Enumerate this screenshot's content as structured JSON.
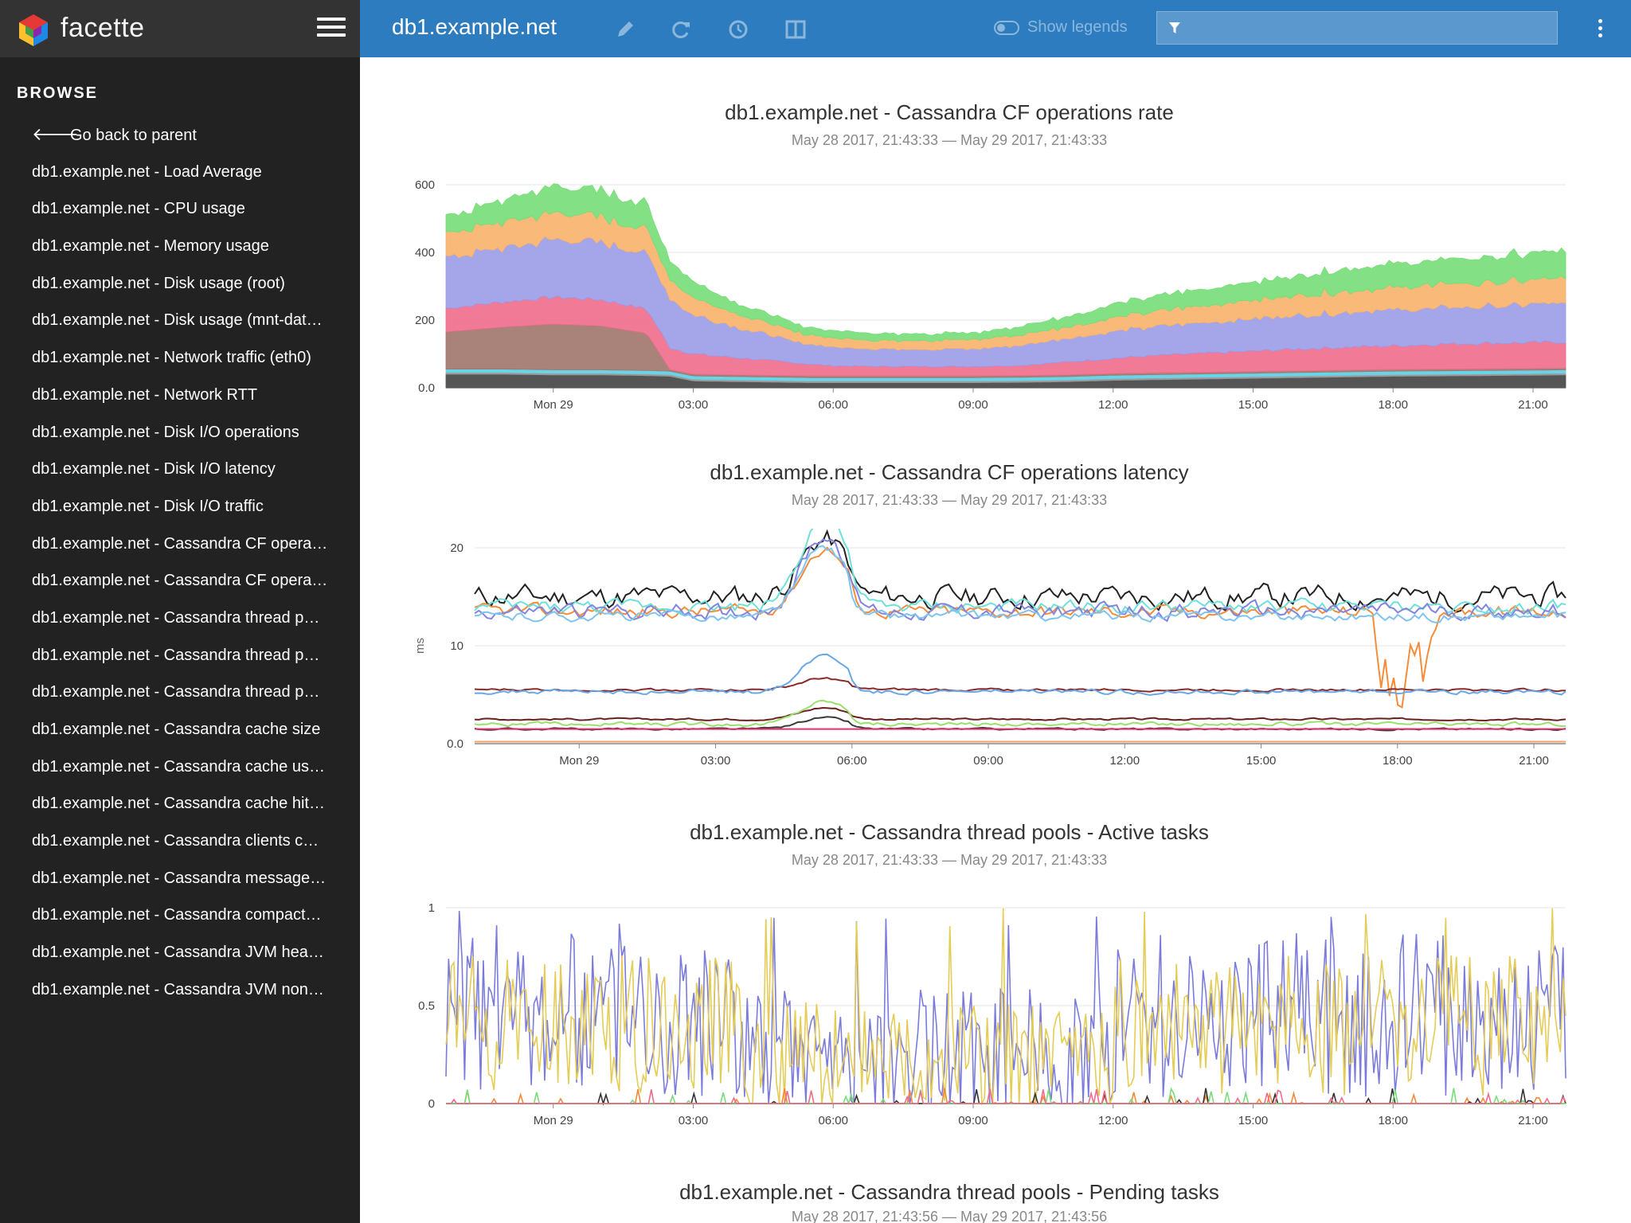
{
  "app": {
    "name": "facette",
    "menu_icon": "hamburger-icon"
  },
  "sidebar": {
    "section_title": "BROWSE",
    "back_label": "Go back to parent",
    "items": [
      "db1.example.net - Load Average",
      "db1.example.net - CPU usage",
      "db1.example.net - Memory usage",
      "db1.example.net - Disk usage (root)",
      "db1.example.net - Disk usage (mnt-dat…",
      "db1.example.net - Network traffic (eth0)",
      "db1.example.net - Network RTT",
      "db1.example.net - Disk I/O operations",
      "db1.example.net - Disk I/O latency",
      "db1.example.net - Disk I/O traffic",
      "db1.example.net - Cassandra CF opera…",
      "db1.example.net - Cassandra CF opera…",
      "db1.example.net - Cassandra thread p…",
      "db1.example.net - Cassandra thread p…",
      "db1.example.net - Cassandra thread p…",
      "db1.example.net - Cassandra cache size",
      "db1.example.net - Cassandra cache us…",
      "db1.example.net - Cassandra cache hit…",
      "db1.example.net - Cassandra clients c…",
      "db1.example.net - Cassandra message…",
      "db1.example.net - Cassandra compact…",
      "db1.example.net - Cassandra JVM hea…",
      "db1.example.net - Cassandra JVM non…"
    ]
  },
  "topbar": {
    "title": "db1.example.net",
    "icons": [
      "pencil-icon",
      "refresh-icon",
      "clock-icon",
      "columns-icon"
    ],
    "legend_label": "Show legends",
    "filter_placeholder": "",
    "filter_value": ""
  },
  "colors": {
    "sidebar_bg": "#222222",
    "topbar_bg": "#2d7cbf",
    "green": "#77dd77",
    "orange": "#f8b26a",
    "blue": "#9b9be8",
    "red": "#f06b8c",
    "brown": "#a0746b",
    "yellow": "#e5cc55",
    "purple": "#7b7bdc"
  },
  "chart_data": [
    {
      "type": "area",
      "title": "db1.example.net - Cassandra CF operations rate",
      "subtitle": "May 28 2017, 21:43:33 — May 29 2017, 21:43:33",
      "xlabel": "",
      "ylabel": "",
      "x_ticks": [
        "Mon 29",
        "03:00",
        "06:00",
        "09:00",
        "12:00",
        "15:00",
        "18:00",
        "21:00"
      ],
      "y_ticks": [
        "600",
        "400",
        "200",
        "0.0"
      ],
      "ylim": [
        0,
        600
      ],
      "stacked": true,
      "grid": true,
      "x_hours": [
        -2.3,
        -1,
        0,
        1,
        2,
        2.5,
        3,
        4,
        5,
        5.5,
        6,
        7,
        8,
        9,
        10,
        11,
        12,
        13,
        14,
        15,
        16,
        17,
        18,
        19,
        20,
        21,
        21.7
      ],
      "series": [
        {
          "values": [
            40,
            40,
            38,
            38,
            36,
            34,
            20,
            18,
            16,
            15,
            15,
            15,
            15,
            15,
            16,
            18,
            22,
            24,
            26,
            28,
            30,
            32,
            34,
            35,
            36,
            37,
            38
          ]
        },
        {
          "values": [
            5,
            5,
            5,
            5,
            5,
            5,
            5,
            5,
            5,
            5,
            5,
            5,
            5,
            5,
            5,
            5,
            5,
            5,
            5,
            5,
            5,
            5,
            5,
            5,
            5,
            5,
            5
          ]
        },
        {
          "values": [
            10,
            10,
            10,
            10,
            10,
            10,
            10,
            10,
            10,
            10,
            10,
            10,
            10,
            10,
            10,
            10,
            10,
            10,
            10,
            10,
            10,
            10,
            10,
            10,
            10,
            10,
            10
          ]
        },
        {
          "values": [
            110,
            125,
            135,
            130,
            110,
            5,
            5,
            5,
            5,
            5,
            5,
            5,
            5,
            5,
            5,
            5,
            5,
            5,
            5,
            5,
            5,
            5,
            5,
            5,
            5,
            5,
            5
          ]
        },
        {
          "values": [
            70,
            75,
            80,
            78,
            72,
            65,
            60,
            50,
            40,
            35,
            30,
            28,
            28,
            28,
            30,
            38,
            45,
            52,
            56,
            60,
            65,
            68,
            70,
            74,
            76,
            76,
            78
          ]
        },
        {
          "values": [
            150,
            160,
            170,
            170,
            165,
            150,
            115,
            90,
            65,
            60,
            55,
            52,
            52,
            52,
            60,
            70,
            80,
            85,
            90,
            95,
            100,
            104,
            106,
            108,
            110,
            112,
            115
          ]
        },
        {
          "values": [
            70,
            80,
            80,
            75,
            70,
            55,
            50,
            40,
            30,
            28,
            27,
            26,
            26,
            28,
            30,
            34,
            40,
            45,
            50,
            55,
            60,
            62,
            66,
            68,
            70,
            72,
            74
          ]
        },
        {
          "values": [
            50,
            65,
            80,
            75,
            75,
            55,
            50,
            30,
            25,
            22,
            22,
            20,
            20,
            20,
            25,
            30,
            40,
            45,
            50,
            55,
            60,
            65,
            70,
            74,
            75,
            78,
            80
          ]
        }
      ]
    },
    {
      "type": "line",
      "title": "db1.example.net - Cassandra CF operations latency",
      "subtitle": "May 28 2017, 21:43:33 — May 29 2017, 21:43:33",
      "xlabel": "",
      "ylabel": "ms",
      "x_ticks": [
        "Mon 29",
        "03:00",
        "06:00",
        "09:00",
        "12:00",
        "15:00",
        "18:00",
        "21:00"
      ],
      "y_ticks": [
        "20",
        "10",
        "0.0"
      ],
      "ylim": [
        0,
        20
      ],
      "grid": true,
      "series": [
        {
          "mean": 15,
          "amp": 3.5,
          "spike": 20
        },
        {
          "mean": 13.5,
          "amp": 2.0,
          "spike": 19
        },
        {
          "mean": 14,
          "amp": 2.0,
          "spike": 22
        },
        {
          "mean": 13.5,
          "amp": 2.5,
          "spike": 20
        },
        {
          "mean": 13,
          "amp": 1.5,
          "spike": 19
        },
        {
          "mean": 5.5,
          "amp": 0.4,
          "spike": 6.5
        },
        {
          "mean": 5.3,
          "amp": 0.7,
          "spike": 8.5
        },
        {
          "mean": 2.5,
          "amp": 0.3,
          "spike": 3.5
        },
        {
          "mean": 2.0,
          "amp": 0.6,
          "spike": 4.0
        },
        {
          "mean": 1.5,
          "amp": 0.3,
          "spike": 2.5
        },
        {
          "mean": 1.5,
          "amp": 0.0,
          "spike": 1.5
        },
        {
          "mean": 0.2,
          "amp": 0.0,
          "spike": 0.2
        }
      ]
    },
    {
      "type": "line",
      "title": "db1.example.net - Cassandra thread pools - Active tasks",
      "subtitle": "May 28 2017, 21:43:33 — May 29 2017, 21:43:33",
      "xlabel": "",
      "ylabel": "",
      "x_ticks": [
        "Mon 29",
        "03:00",
        "06:00",
        "09:00",
        "12:00",
        "15:00",
        "18:00",
        "21:00"
      ],
      "y_ticks": [
        "1",
        "0.5",
        "0"
      ],
      "ylim": [
        0,
        1
      ],
      "grid": true,
      "series": [
        {
          "mean": 0.45,
          "amp": 0.35
        },
        {
          "mean": 0.4,
          "amp": 0.3
        },
        {
          "mean": 0.02,
          "amp": 0.05
        },
        {
          "mean": 0.01,
          "amp": 0.05
        },
        {
          "mean": 0.01,
          "amp": 0.04
        },
        {
          "mean": 0.01,
          "amp": 0.04
        }
      ]
    },
    {
      "type": "line",
      "title": "db1.example.net - Cassandra thread pools - Pending tasks",
      "subtitle": "May 28 2017, 21:43:56 — May 29 2017, 21:43:56"
    }
  ]
}
